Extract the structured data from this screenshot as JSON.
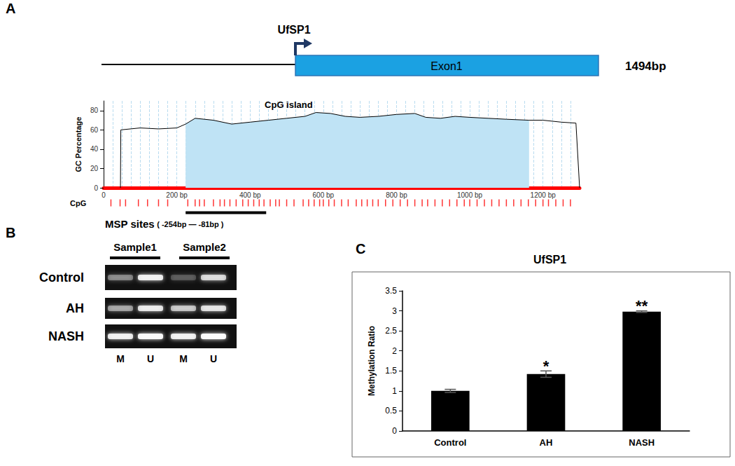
{
  "panel_labels": [
    "A",
    "B",
    "C"
  ],
  "gene": {
    "name": "UfSP1",
    "exon": "Exon1",
    "length_label": "1494bp"
  },
  "chart_data": [
    {
      "type": "line",
      "y_label": "GC Percentage",
      "annotation": "CpG island",
      "x": [
        46,
        47,
        100,
        150,
        200,
        224,
        250,
        300,
        350,
        400,
        450,
        500,
        550,
        580,
        620,
        660,
        700,
        750,
        800,
        850,
        880,
        920,
        960,
        1000,
        1050,
        1100,
        1162,
        1200,
        1250,
        1290,
        1300
      ],
      "values": [
        0,
        60,
        62,
        61,
        62,
        66,
        72,
        70,
        66,
        68,
        70,
        72,
        74,
        78,
        77,
        74,
        73,
        74,
        76,
        77,
        73,
        72,
        74,
        73,
        72,
        71,
        70,
        70,
        68,
        67,
        0
      ],
      "color": "#000000",
      "xlim": [
        0,
        1300
      ],
      "xticks": [
        0,
        {
          "value": 200,
          "label": "200 bp"
        },
        {
          "value": 400,
          "label": "400 bp"
        },
        {
          "value": 600,
          "label": "600 bp"
        },
        {
          "value": 800,
          "label": "800 bp"
        },
        {
          "value": 1000,
          "label": "1000 bp"
        },
        {
          "value": 1200,
          "label": "1200 bp"
        }
      ],
      "ylim": [
        0,
        90
      ],
      "yticks": [
        0,
        20,
        40,
        60,
        80
      ],
      "grid": true,
      "island": [
        224,
        1162
      ],
      "island_color": "#bfe3f5",
      "cpg_label": "CpG",
      "cpg_color": "#ff0000",
      "cpg_sites": [
        20,
        45,
        60,
        95,
        120,
        150,
        175,
        230,
        250,
        262,
        275,
        300,
        318,
        330,
        345,
        362,
        380,
        395,
        410,
        425,
        438,
        455,
        470,
        480,
        500,
        520,
        545,
        560,
        575,
        590,
        600,
        615,
        630,
        650,
        668,
        690,
        705,
        720,
        735,
        750,
        770,
        790,
        810,
        830,
        850,
        870,
        885,
        905,
        925,
        945,
        965,
        985,
        1000,
        1020,
        1040,
        1060,
        1080,
        1100,
        1120,
        1140,
        1160,
        1180,
        1200,
        1215,
        1235,
        1255,
        1275
      ],
      "msp_region": [
        224,
        444
      ],
      "msp_label": "MSP sites",
      "msp_range_label": "( -254bp — -81bp )"
    },
    {
      "type": "bar",
      "title": "UfSP1",
      "y_label": "Methylation Ratio",
      "categories": [
        "Control",
        "AH",
        "NASH"
      ],
      "values": [
        1,
        1.42,
        2.98
      ],
      "errors": [
        0.04,
        0.08,
        0.02
      ],
      "color": "#000000",
      "ylim": [
        0,
        3.5
      ],
      "yticks": [
        0,
        0.5,
        1,
        1.5,
        2,
        2.5,
        3,
        3.5
      ],
      "grid": false,
      "annotations": [
        {
          "x": "AH",
          "text": "*"
        },
        {
          "x": "NASH",
          "text": "**"
        }
      ]
    }
  ],
  "gel": {
    "samples": [
      "Sample1",
      "Sample2"
    ],
    "lanes": [
      "M",
      "U",
      "M",
      "U"
    ],
    "rows": [
      {
        "label": "Control",
        "intensity": [
          0.35,
          0.85,
          0.2,
          0.7
        ]
      },
      {
        "label": "AH",
        "intensity": [
          0.45,
          0.8,
          0.6,
          0.75
        ]
      },
      {
        "label": "NASH",
        "intensity": [
          0.85,
          0.95,
          0.85,
          0.95
        ]
      }
    ]
  }
}
